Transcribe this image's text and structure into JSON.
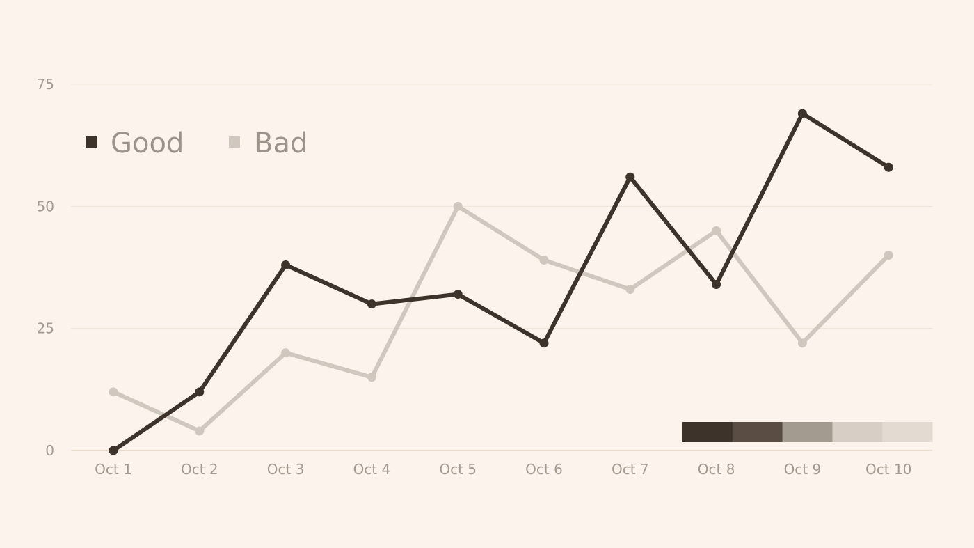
{
  "chart_data": {
    "type": "line",
    "title": "",
    "xlabel": "",
    "ylabel": "",
    "categories": [
      "Oct 1",
      "Oct 2",
      "Oct 3",
      "Oct 4",
      "Oct 5",
      "Oct 6",
      "Oct 7",
      "Oct 8",
      "Oct 9",
      "Oct 10"
    ],
    "series": [
      {
        "name": "Good",
        "color": "#3d332b",
        "values": [
          0,
          12,
          38,
          30,
          32,
          22,
          56,
          34,
          69,
          58
        ]
      },
      {
        "name": "Bad",
        "color": "#cfc8be",
        "values": [
          12,
          4,
          20,
          15,
          50,
          39,
          33,
          45,
          22,
          40
        ]
      }
    ],
    "ylim": [
      0,
      75
    ],
    "yticks": [
      0,
      25,
      50,
      75
    ],
    "grid": true,
    "legend_position": "top-left",
    "color_scale": [
      "#3d332b",
      "#5a4d43",
      "#a39a90",
      "#d7cfc6",
      "#e3dbd2"
    ]
  }
}
